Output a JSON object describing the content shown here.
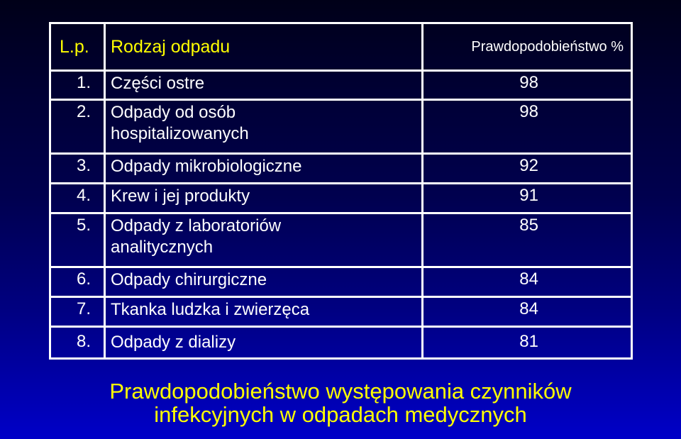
{
  "table": {
    "headers": {
      "number": "L.p.",
      "type": "Rodzaj odpadu",
      "probability": "Prawdopodobieństwo %"
    },
    "rows": [
      {
        "number": "1.",
        "type": "Części ostre",
        "probability": "98"
      },
      {
        "number": "2.",
        "type": "Odpady od osób hospitalizowanych",
        "probability": "98"
      },
      {
        "number": "3.",
        "type": "Odpady mikrobiologiczne",
        "probability": "92"
      },
      {
        "number": "4.",
        "type": "Krew i jej produkty",
        "probability": "91"
      },
      {
        "number": "5.",
        "type": "Odpady z laboratoriów analitycznych",
        "probability": "85"
      },
      {
        "number": "6.",
        "type": "Odpady chirurgiczne",
        "probability": "84"
      },
      {
        "number": "7.",
        "type": "Tkanka ludzka i zwierzęca",
        "probability": "84"
      },
      {
        "number": "8.",
        "type": "Odpady z dializy",
        "probability": "81"
      }
    ]
  },
  "caption": {
    "line1": "Prawdopodobieństwo występowania czynników",
    "line2": "infekcyjnych w odpadach medycznych"
  },
  "colors": {
    "header_text": "#ffff00",
    "body_text": "#ffffff",
    "caption_text": "#ffff00",
    "border": "#ffffff",
    "background_top": "#000018",
    "background_bottom": "#0000c8"
  }
}
